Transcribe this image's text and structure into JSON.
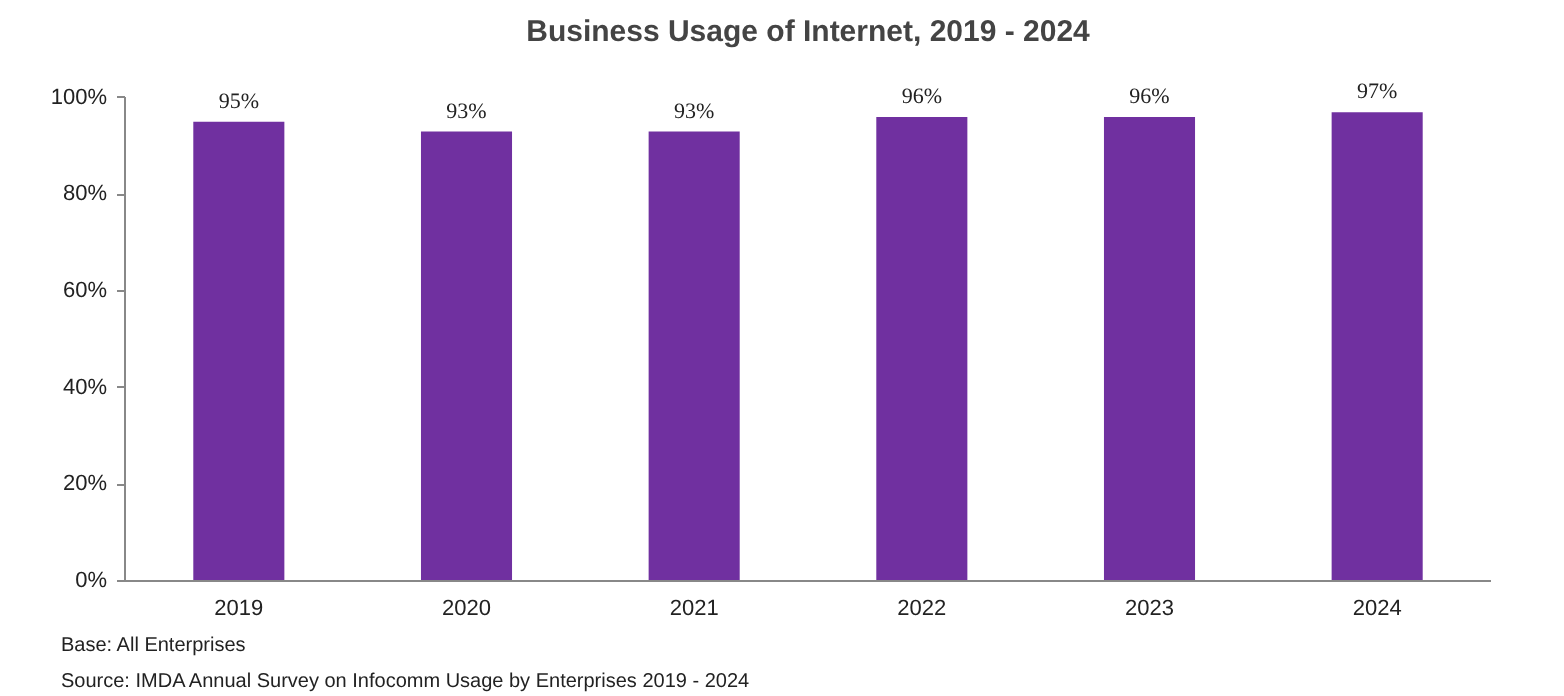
{
  "chart_data": {
    "type": "bar",
    "title": "Business Usage of Internet, 2019 - 2024",
    "categories": [
      "2019",
      "2020",
      "2021",
      "2022",
      "2023",
      "2024"
    ],
    "values": [
      95,
      93,
      93,
      96,
      96,
      97
    ],
    "value_labels": [
      "95%",
      "93%",
      "93%",
      "96%",
      "96%",
      "97%"
    ],
    "color": "#7030a0",
    "ylim": [
      0,
      100
    ],
    "yticks": [
      {
        "value": 0,
        "label": "0%"
      },
      {
        "value": 20,
        "label": "20%"
      },
      {
        "value": 40,
        "label": "40%"
      },
      {
        "value": 60,
        "label": "60%"
      },
      {
        "value": 80,
        "label": "80%"
      },
      {
        "value": 100,
        "label": "100%"
      }
    ],
    "grid": false,
    "annotations": [
      "Base: All Enterprises",
      "Source: IMDA Annual Survey on Infocomm Usage by Enterprises 2019 - 2024"
    ]
  }
}
